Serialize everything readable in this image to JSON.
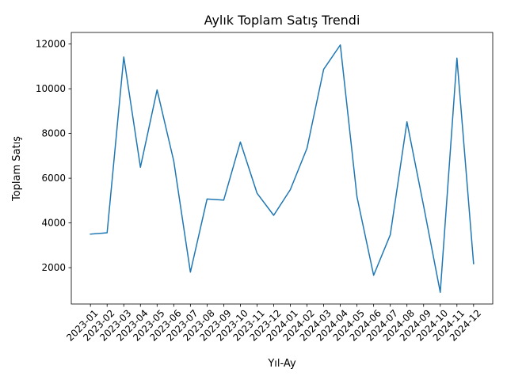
{
  "chart_data": {
    "type": "line",
    "title": "Aylık Toplam Satış Trendi",
    "xlabel": "Yıl-Ay",
    "ylabel": "Toplam Satış",
    "grid": false,
    "legend": "none",
    "ylim": [
      376,
      12517
    ],
    "yticks": [
      2000,
      4000,
      6000,
      8000,
      10000,
      12000
    ],
    "categories": [
      "2023-01",
      "2023-02",
      "2023-03",
      "2023-04",
      "2023-05",
      "2023-06",
      "2023-07",
      "2023-08",
      "2023-09",
      "2023-10",
      "2023-11",
      "2023-12",
      "2024-01",
      "2024-02",
      "2024-03",
      "2024-04",
      "2024-05",
      "2024-06",
      "2024-07",
      "2024-08",
      "2024-09",
      "2024-10",
      "2024-11",
      "2024-12"
    ],
    "series": [
      {
        "color": "#1f77b4",
        "values": [
          3500,
          3560,
          11420,
          6490,
          9950,
          6770,
          1800,
          5070,
          5020,
          7620,
          5330,
          4340,
          5490,
          7340,
          10870,
          11960,
          5170,
          1660,
          3470,
          8520,
          4760,
          900,
          11370,
          2180
        ]
      }
    ]
  }
}
